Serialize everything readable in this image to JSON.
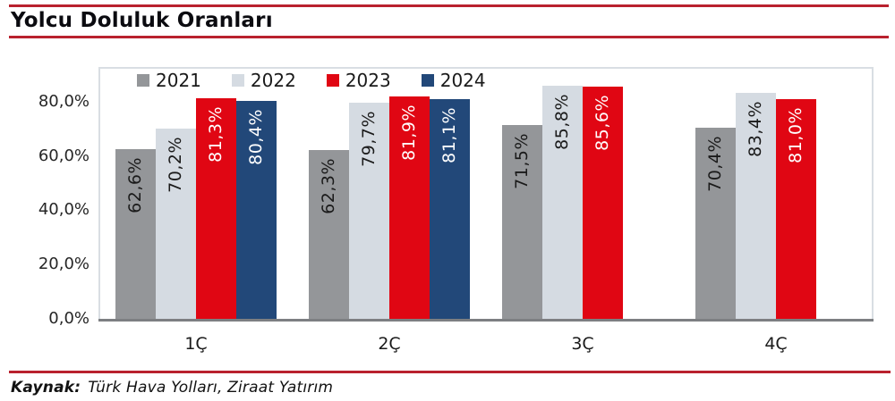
{
  "title": "Yolcu Doluluk Oranları",
  "source": {
    "label": "Kaynak:",
    "text": "Türk Hava Yolları, Ziraat Yatırım"
  },
  "colors": {
    "accent_rule": "#b9212e",
    "axis_line": "#7d7f82",
    "plot_border": "#d9dee3",
    "bar_2021": "#949699",
    "bar_2022": "#d5dbe2",
    "bar_2023": "#e00613",
    "bar_2024": "#224879"
  },
  "chart_data": {
    "type": "bar",
    "title": "Yolcu Doluluk Oranları",
    "categories": [
      "1Ç",
      "2Ç",
      "3Ç",
      "4Ç"
    ],
    "series": [
      {
        "name": "2021",
        "color": "#949699",
        "label_color": "#1a1a1a",
        "values": [
          62.6,
          62.3,
          71.5,
          70.4
        ],
        "labels": [
          "62,6%",
          "62,3%",
          "71,5%",
          "70,4%"
        ]
      },
      {
        "name": "2022",
        "color": "#d5dbe2",
        "label_color": "#1a1a1a",
        "values": [
          70.2,
          79.7,
          85.8,
          83.4
        ],
        "labels": [
          "70,2%",
          "79,7%",
          "85,8%",
          "83,4%"
        ]
      },
      {
        "name": "2023",
        "color": "#e00613",
        "label_color": "#ffffff",
        "values": [
          81.3,
          81.9,
          85.6,
          81.0
        ],
        "labels": [
          "81,3%",
          "81,9%",
          "85,6%",
          "81,0%"
        ]
      },
      {
        "name": "2024",
        "color": "#224879",
        "label_color": "#ffffff",
        "values": [
          80.4,
          81.1,
          null,
          null
        ],
        "labels": [
          "80,4%",
          "81,1%",
          null,
          null
        ]
      }
    ],
    "y_ticks": [
      {
        "label": "80,0%",
        "value": 80
      },
      {
        "label": "60,0%",
        "value": 60
      },
      {
        "label": "40,0%",
        "value": 40
      },
      {
        "label": "20,0%",
        "value": 20
      },
      {
        "label": "0,0%",
        "value": 0
      }
    ],
    "ylim": [
      0,
      92.8
    ],
    "xlabel": "",
    "ylabel": "",
    "grid": false,
    "legend_position": "top"
  }
}
